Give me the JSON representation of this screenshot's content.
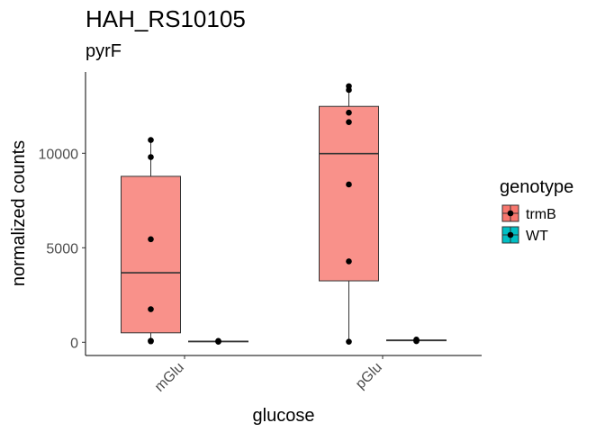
{
  "chart_data": {
    "type": "boxplot",
    "title": "HAH_RS10105",
    "subtitle": "pyrF",
    "xlabel": "glucose",
    "ylabel": "normalized counts",
    "categories": [
      "mGlu",
      "pGlu"
    ],
    "ylim": [
      -700,
      14300
    ],
    "yticks": [
      0,
      5000,
      10000
    ],
    "ytick_labels": [
      "0",
      "5000",
      "10000"
    ],
    "grid": false,
    "legend": {
      "title": "genotype",
      "position": "right",
      "entries": [
        {
          "label": "trmB",
          "color": "#F8766D"
        },
        {
          "label": "WT",
          "color": "#00BFC4"
        }
      ]
    },
    "series": [
      {
        "name": "trmB",
        "color": "#F8766D",
        "boxes": [
          {
            "category": "mGlu",
            "min": 50,
            "q1": 500,
            "median": 3680,
            "q3": 8780,
            "max": 10700
          },
          {
            "category": "pGlu",
            "min": 30,
            "q1": 3250,
            "median": 9980,
            "q3": 12480,
            "max": 13550
          }
        ],
        "points": [
          {
            "category": "mGlu",
            "values": [
              50,
              80,
              1750,
              5450,
              9800,
              10700
            ]
          },
          {
            "category": "pGlu",
            "values": [
              30,
              4280,
              8350,
              11650,
              12150,
              13350,
              13550
            ]
          }
        ]
      },
      {
        "name": "WT",
        "color": "#00BFC4",
        "boxes": [
          {
            "category": "mGlu",
            "min": 30,
            "q1": 40,
            "median": 50,
            "q3": 60,
            "max": 70
          },
          {
            "category": "pGlu",
            "min": 60,
            "q1": 80,
            "median": 100,
            "q3": 120,
            "max": 140
          }
        ],
        "points": [
          {
            "category": "mGlu",
            "values": [
              30,
              50,
              70
            ]
          },
          {
            "category": "pGlu",
            "values": [
              60,
              100,
              140
            ]
          }
        ]
      }
    ]
  }
}
